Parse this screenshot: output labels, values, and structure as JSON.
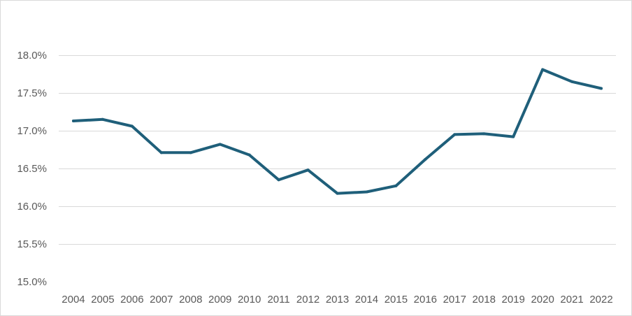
{
  "chart_data": {
    "type": "line",
    "title": "",
    "xlabel": "",
    "ylabel": "",
    "ylim": [
      0.15,
      0.18
    ],
    "y_tick_step": 0.005,
    "grid": "horizontal",
    "legend": "none",
    "line_color": "#1f5f7a",
    "categories": [
      "2004",
      "2005",
      "2006",
      "2007",
      "2008",
      "2009",
      "2010",
      "2011",
      "2012",
      "2013",
      "2014",
      "2015",
      "2016",
      "2017",
      "2018",
      "2019",
      "2020",
      "2021",
      "2022"
    ],
    "y_ticks": [
      {
        "value": 0.15,
        "label": "15.0%"
      },
      {
        "value": 0.155,
        "label": "15.5%"
      },
      {
        "value": 0.16,
        "label": "16.0%"
      },
      {
        "value": 0.165,
        "label": "16.5%"
      },
      {
        "value": 0.17,
        "label": "17.0%"
      },
      {
        "value": 0.175,
        "label": "17.5%"
      },
      {
        "value": 0.18,
        "label": "18.0%"
      }
    ],
    "series": [
      {
        "values": [
          0.1713,
          0.1715,
          0.1706,
          0.1671,
          0.1671,
          0.1682,
          0.1668,
          0.1635,
          0.1648,
          0.1617,
          0.1619,
          0.1627,
          0.1662,
          0.1695,
          0.1696,
          0.1692,
          0.1781,
          0.1765,
          0.1756
        ]
      }
    ]
  }
}
